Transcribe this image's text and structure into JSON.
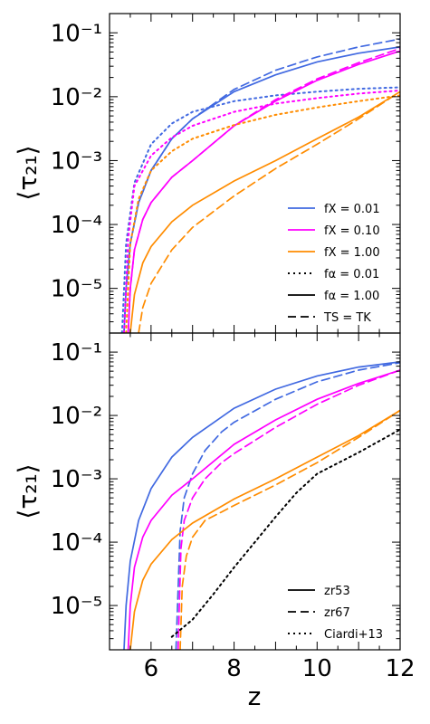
{
  "chart_data": [
    {
      "type": "line",
      "panel": "top",
      "xlabel": "",
      "ylabel": "⟨τ₂₁⟩",
      "xlim": [
        5,
        12
      ],
      "ylim": [
        2e-06,
        0.2
      ],
      "yscale": "log",
      "yticklabels": [
        "10⁻¹",
        "10⁻²",
        "10⁻³",
        "10⁻⁴",
        "10⁻⁵"
      ],
      "xticklabels": [],
      "legend_position": "lower-right",
      "legend": [
        {
          "label": "fX = 0.01",
          "color": "#4169E1",
          "style": "solid"
        },
        {
          "label": "fX = 0.10",
          "color": "#FF00FF",
          "style": "solid"
        },
        {
          "label": "fX = 1.00",
          "color": "#FF8C00",
          "style": "solid"
        },
        {
          "label": "fα = 0.01",
          "color": "#000000",
          "style": "dotted"
        },
        {
          "label": "fα = 1.00",
          "color": "#000000",
          "style": "solid"
        },
        {
          "label": "TS = TK",
          "color": "#000000",
          "style": "dashed"
        }
      ],
      "series": [
        {
          "color": "#4169E1",
          "style": "solid",
          "x": [
            5.35,
            5.4,
            5.5,
            5.7,
            6.0,
            6.5,
            7.0,
            8.0,
            9.0,
            10.0,
            11.0,
            12.0
          ],
          "y": [
            2e-06,
            1e-05,
            5e-05,
            0.00022,
            0.0007,
            0.0022,
            0.0045,
            0.012,
            0.022,
            0.035,
            0.048,
            0.06
          ]
        },
        {
          "color": "#4169E1",
          "style": "dashed",
          "x": [
            5.35,
            5.4,
            5.5,
            5.7,
            6.0,
            6.5,
            7.0,
            8.0,
            9.0,
            10.0,
            11.0,
            12.0
          ],
          "y": [
            2e-06,
            1e-05,
            5e-05,
            0.00022,
            0.0007,
            0.0022,
            0.0045,
            0.013,
            0.026,
            0.042,
            0.06,
            0.08
          ]
        },
        {
          "color": "#4169E1",
          "style": "dotted",
          "x": [
            5.3,
            5.4,
            5.6,
            6.0,
            6.5,
            7.0,
            8.0,
            9.0,
            10.0,
            11.0,
            12.0
          ],
          "y": [
            2e-06,
            5e-05,
            0.00045,
            0.0018,
            0.0038,
            0.0058,
            0.0085,
            0.0105,
            0.012,
            0.0133,
            0.014
          ]
        },
        {
          "color": "#FF00FF",
          "style": "solid",
          "x": [
            5.45,
            5.5,
            5.6,
            5.8,
            6.0,
            6.5,
            7.0,
            8.0,
            9.0,
            10.0,
            11.0,
            12.0
          ],
          "y": [
            2e-06,
            1e-05,
            4e-05,
            0.00012,
            0.00022,
            0.00055,
            0.001,
            0.0035,
            0.0085,
            0.018,
            0.032,
            0.052
          ]
        },
        {
          "color": "#FF00FF",
          "style": "dashed",
          "x": [
            5.45,
            5.5,
            5.6,
            5.8,
            6.0,
            6.5,
            7.0,
            8.0,
            9.0,
            10.0,
            11.0,
            12.0
          ],
          "y": [
            2e-06,
            1e-05,
            4e-05,
            0.00012,
            0.00022,
            0.00055,
            0.001,
            0.0035,
            0.009,
            0.019,
            0.034,
            0.057
          ]
        },
        {
          "color": "#FF00FF",
          "style": "dotted",
          "x": [
            5.35,
            5.45,
            5.6,
            6.0,
            6.5,
            7.0,
            8.0,
            9.0,
            10.0,
            11.0,
            12.0
          ],
          "y": [
            2e-06,
            6e-05,
            0.0004,
            0.0012,
            0.0023,
            0.0035,
            0.0058,
            0.0078,
            0.0095,
            0.0112,
            0.0125
          ]
        },
        {
          "color": "#FF8C00",
          "style": "solid",
          "x": [
            5.5,
            5.6,
            5.8,
            6.0,
            6.5,
            7.0,
            8.0,
            9.0,
            10.0,
            11.0,
            12.0
          ],
          "y": [
            2e-06,
            8e-06,
            2.5e-05,
            4.5e-05,
            0.00011,
            0.0002,
            0.00048,
            0.001,
            0.0022,
            0.0048,
            0.012
          ]
        },
        {
          "color": "#FF8C00",
          "style": "dashed",
          "x": [
            5.7,
            5.8,
            6.0,
            6.5,
            7.0,
            8.0,
            9.0,
            10.0,
            11.0,
            12.0
          ],
          "y": [
            2e-06,
            5e-06,
            1.2e-05,
            4e-05,
            9e-05,
            0.00028,
            0.00075,
            0.0018,
            0.0045,
            0.012
          ]
        },
        {
          "color": "#FF8C00",
          "style": "dotted",
          "x": [
            5.4,
            5.5,
            5.7,
            6.0,
            6.5,
            7.0,
            8.0,
            9.0,
            10.0,
            11.0,
            12.0
          ],
          "y": [
            2e-06,
            5e-05,
            0.00025,
            0.0007,
            0.0014,
            0.0022,
            0.0036,
            0.0052,
            0.0068,
            0.0085,
            0.0105
          ]
        }
      ]
    },
    {
      "type": "line",
      "panel": "bottom",
      "xlabel": "z",
      "ylabel": "⟨τ₂₁⟩",
      "xlim": [
        5,
        12
      ],
      "ylim": [
        2e-06,
        0.2
      ],
      "yscale": "log",
      "yticklabels": [
        "10⁻¹",
        "10⁻²",
        "10⁻³",
        "10⁻⁴",
        "10⁻⁵"
      ],
      "xticklabels": [
        "6",
        "8",
        "10",
        "12"
      ],
      "legend_position": "lower-right",
      "legend": [
        {
          "label": "zr53",
          "color": "#000000",
          "style": "solid"
        },
        {
          "label": "zr67",
          "color": "#000000",
          "style": "dashed"
        },
        {
          "label": "Ciardi+13",
          "color": "#000000",
          "style": "dotted"
        }
      ],
      "series": [
        {
          "color": "#4169E1",
          "style": "solid",
          "x": [
            5.35,
            5.4,
            5.5,
            5.7,
            6.0,
            6.5,
            7.0,
            8.0,
            9.0,
            10.0,
            11.0,
            12.0
          ],
          "y": [
            2e-06,
            1e-05,
            5e-05,
            0.00022,
            0.0007,
            0.0022,
            0.0045,
            0.013,
            0.026,
            0.042,
            0.058,
            0.07
          ]
        },
        {
          "color": "#4169E1",
          "style": "dashed",
          "x": [
            6.6,
            6.7,
            6.8,
            7.0,
            7.3,
            7.7,
            8.0,
            9.0,
            10.0,
            11.0,
            12.0
          ],
          "y": [
            2e-06,
            0.00015,
            0.0005,
            0.0012,
            0.0028,
            0.0055,
            0.0078,
            0.018,
            0.034,
            0.052,
            0.068
          ]
        },
        {
          "color": "#FF00FF",
          "style": "solid",
          "x": [
            5.45,
            5.5,
            5.6,
            5.8,
            6.0,
            6.5,
            7.0,
            8.0,
            9.0,
            10.0,
            11.0,
            12.0
          ],
          "y": [
            2e-06,
            1e-05,
            4e-05,
            0.00012,
            0.00022,
            0.00055,
            0.001,
            0.0035,
            0.0085,
            0.018,
            0.032,
            0.052
          ]
        },
        {
          "color": "#FF00FF",
          "style": "dashed",
          "x": [
            6.65,
            6.72,
            6.8,
            7.0,
            7.3,
            7.7,
            8.0,
            9.0,
            10.0,
            11.0,
            12.0
          ],
          "y": [
            2e-06,
            8e-05,
            0.00022,
            0.0005,
            0.001,
            0.0018,
            0.0025,
            0.0065,
            0.015,
            0.03,
            0.052
          ]
        },
        {
          "color": "#FF8C00",
          "style": "solid",
          "x": [
            5.5,
            5.6,
            5.8,
            6.0,
            6.5,
            7.0,
            8.0,
            9.0,
            10.0,
            11.0,
            12.0
          ],
          "y": [
            2e-06,
            8e-06,
            2.5e-05,
            4.5e-05,
            0.00011,
            0.0002,
            0.00048,
            0.001,
            0.0022,
            0.0048,
            0.012
          ]
        },
        {
          "color": "#FF8C00",
          "style": "dashed",
          "x": [
            6.7,
            6.75,
            6.85,
            7.0,
            7.3,
            7.7,
            8.0,
            9.0,
            10.0,
            11.0,
            12.0
          ],
          "y": [
            2e-06,
            2e-05,
            6e-05,
            0.00012,
            0.00022,
            0.0003,
            0.00038,
            0.0008,
            0.0018,
            0.0045,
            0.012
          ]
        },
        {
          "color": "#000000",
          "style": "dotted",
          "x": [
            6.5,
            7.0,
            7.5,
            8.0,
            8.5,
            9.0,
            9.5,
            10.0,
            11.0,
            12.0
          ],
          "y": [
            3.2e-06,
            6e-06,
            1.5e-05,
            4e-05,
            0.0001,
            0.00025,
            0.0006,
            0.0012,
            0.0026,
            0.006
          ]
        }
      ]
    }
  ]
}
